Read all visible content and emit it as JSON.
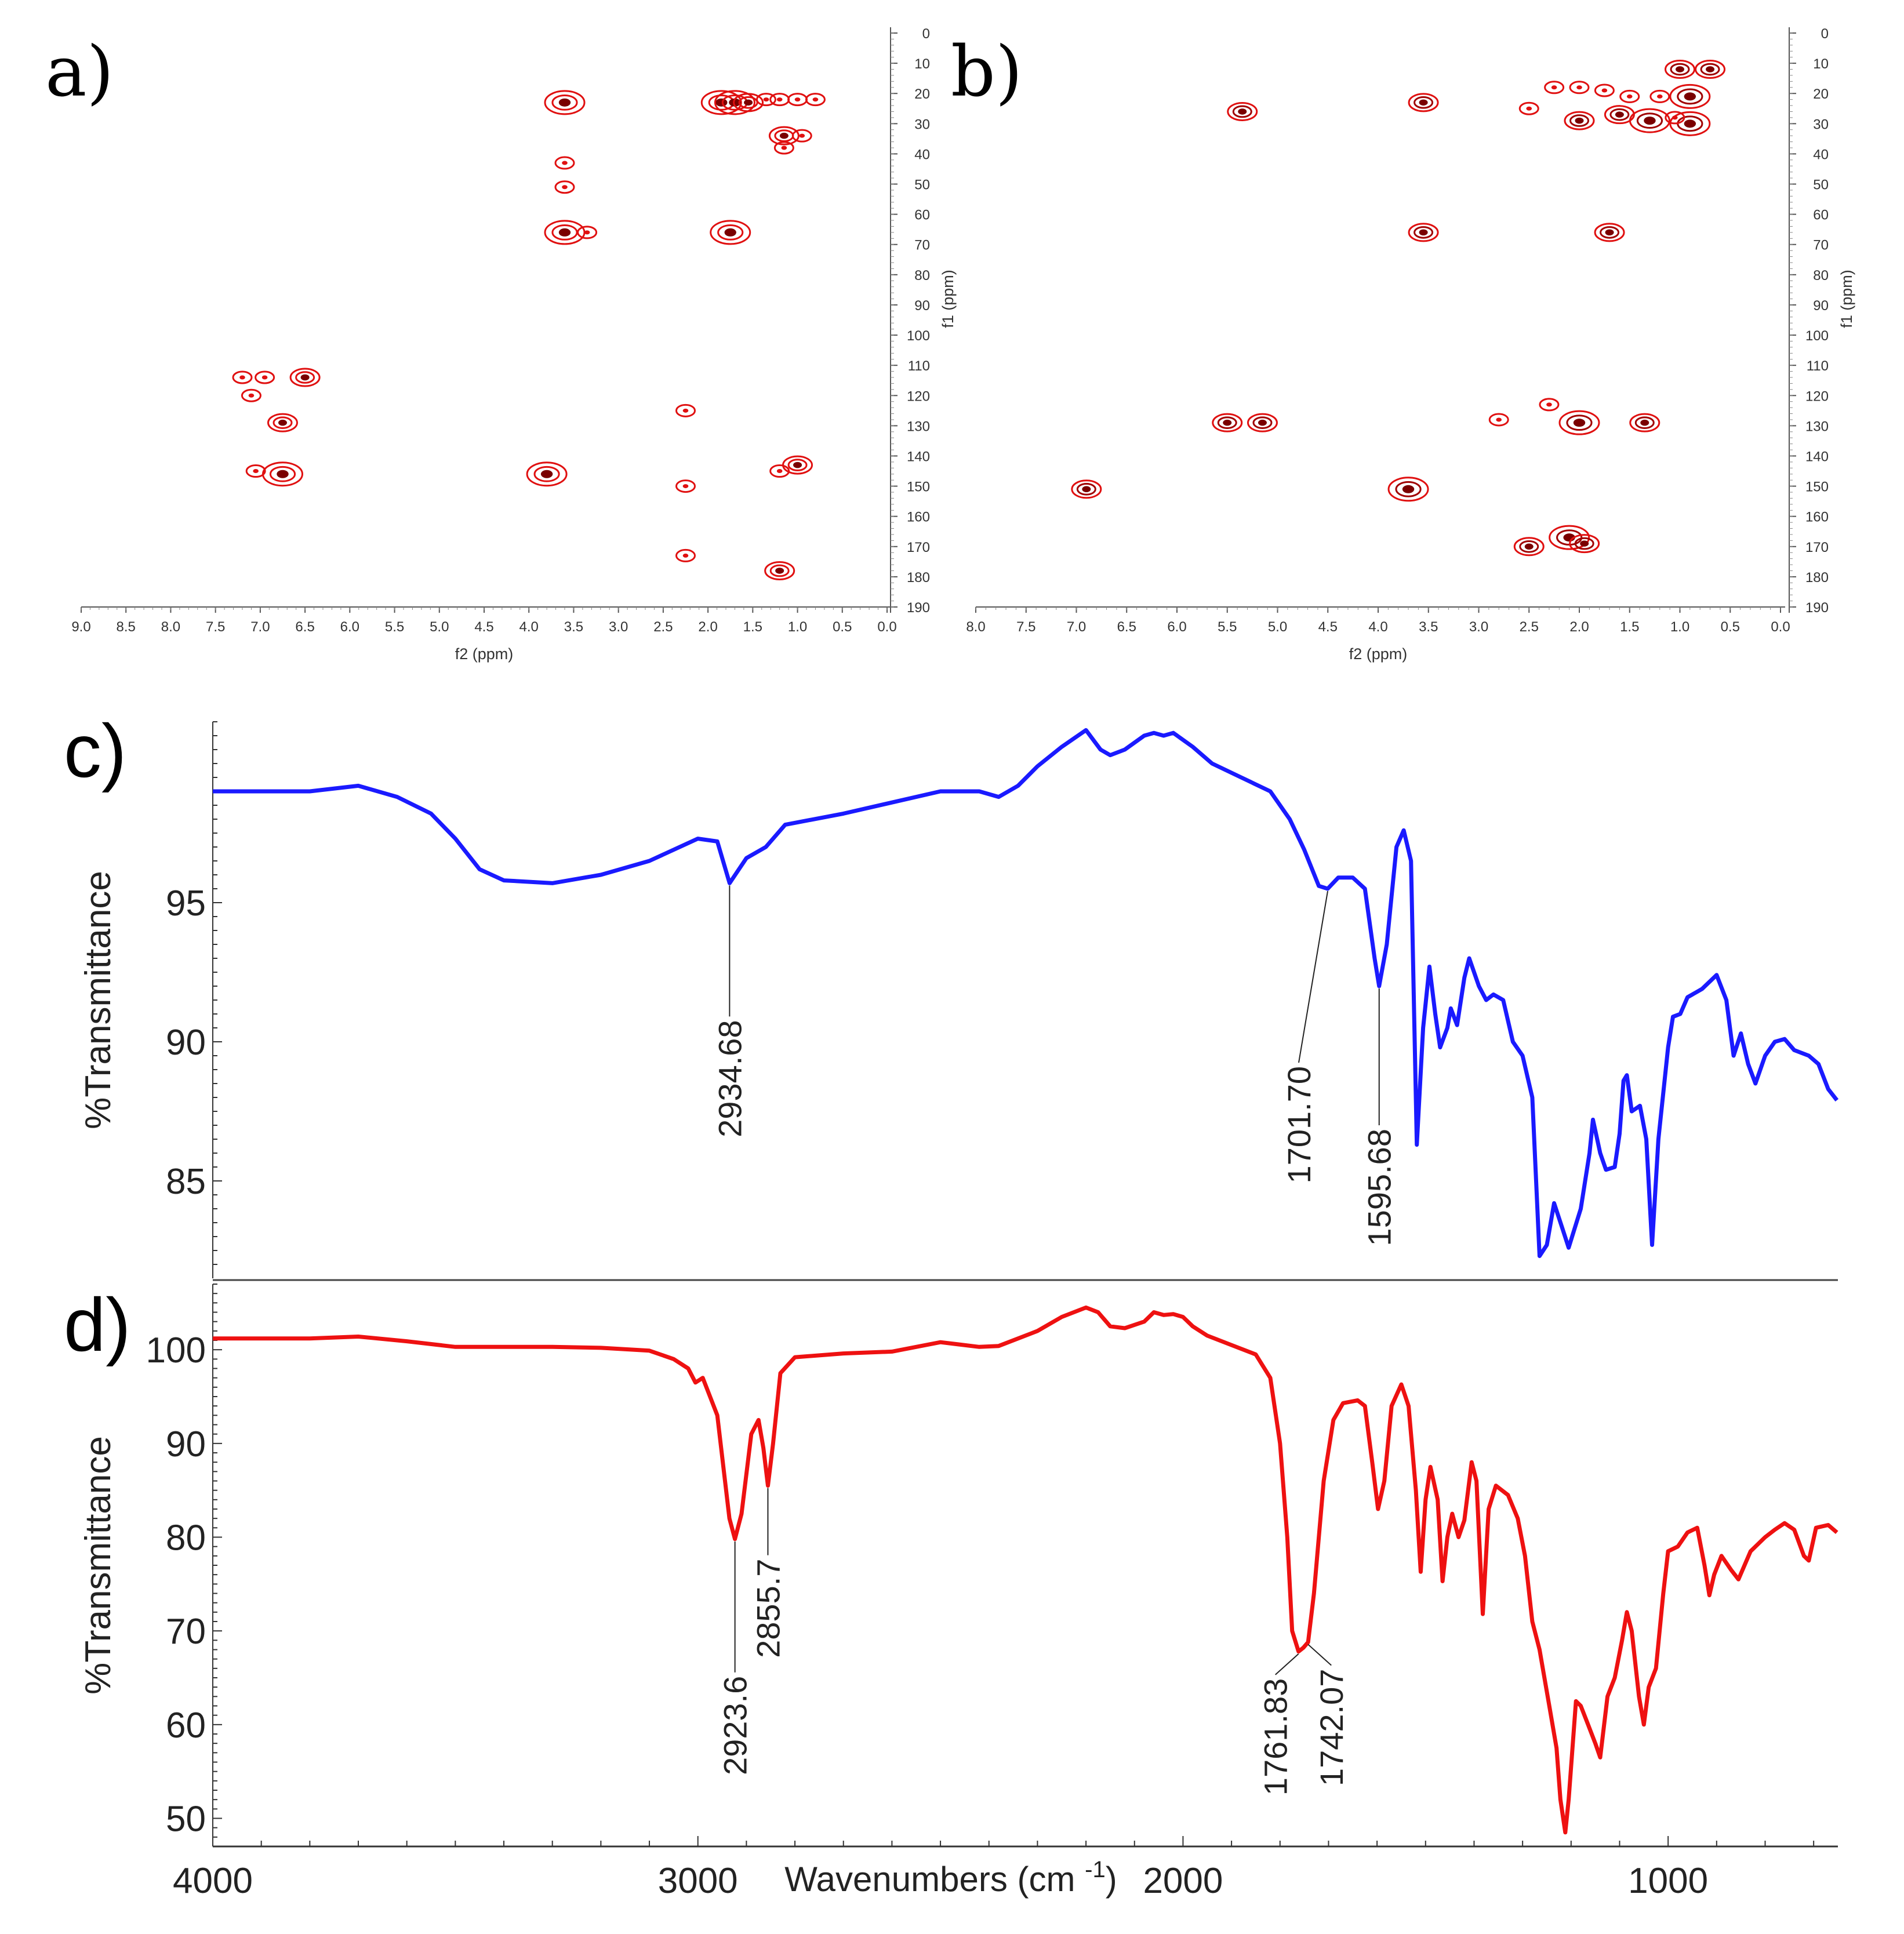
{
  "chart_data": [
    {
      "id": "a",
      "type": "scatter",
      "subtype": "2D NMR HSQC contour map",
      "panel_label": "a)",
      "xlabel": "f2 (ppm)",
      "ylabel": "f1 (ppm)",
      "xlim": [
        9.0,
        0.0
      ],
      "ylim": [
        0,
        190
      ],
      "x_ticks": [
        "9.0",
        "8.5",
        "8.0",
        "7.5",
        "7.0",
        "6.5",
        "6.0",
        "5.5",
        "5.0",
        "4.5",
        "4.0",
        "3.5",
        "3.0",
        "2.5",
        "2.0",
        "1.5",
        "1.0",
        "0.5",
        "0.0"
      ],
      "y_ticks": [
        "0",
        "10",
        "20",
        "30",
        "40",
        "50",
        "60",
        "70",
        "80",
        "90",
        "100",
        "110",
        "120",
        "130",
        "140",
        "150",
        "160",
        "170",
        "180",
        "190"
      ],
      "color": "#e01010",
      "peaks": [
        {
          "x": 3.6,
          "y": 23,
          "s": 3
        },
        {
          "x": 1.85,
          "y": 23,
          "s": 3
        },
        {
          "x": 1.7,
          "y": 23,
          "s": 3
        },
        {
          "x": 1.55,
          "y": 23,
          "s": 2
        },
        {
          "x": 1.35,
          "y": 22,
          "s": 1
        },
        {
          "x": 1.2,
          "y": 22,
          "s": 1
        },
        {
          "x": 1.0,
          "y": 22,
          "s": 1
        },
        {
          "x": 0.8,
          "y": 22,
          "s": 1
        },
        {
          "x": 1.15,
          "y": 34,
          "s": 2
        },
        {
          "x": 0.95,
          "y": 34,
          "s": 1
        },
        {
          "x": 1.15,
          "y": 38,
          "s": 1
        },
        {
          "x": 3.6,
          "y": 66,
          "s": 3
        },
        {
          "x": 3.35,
          "y": 66,
          "s": 1
        },
        {
          "x": 1.75,
          "y": 66,
          "s": 3
        },
        {
          "x": 7.2,
          "y": 114,
          "s": 1
        },
        {
          "x": 6.95,
          "y": 114,
          "s": 1
        },
        {
          "x": 6.5,
          "y": 114,
          "s": 2
        },
        {
          "x": 7.1,
          "y": 120,
          "s": 1
        },
        {
          "x": 6.75,
          "y": 129,
          "s": 2
        },
        {
          "x": 3.8,
          "y": 146,
          "s": 3
        },
        {
          "x": 6.75,
          "y": 146,
          "s": 3
        },
        {
          "x": 7.05,
          "y": 145,
          "s": 1
        },
        {
          "x": 2.25,
          "y": 125,
          "s": 1
        },
        {
          "x": 2.25,
          "y": 150,
          "s": 1
        },
        {
          "x": 1.2,
          "y": 178,
          "s": 2
        },
        {
          "x": 1.0,
          "y": 143,
          "s": 2
        },
        {
          "x": 1.2,
          "y": 145,
          "s": 1
        },
        {
          "x": 2.25,
          "y": 173,
          "s": 1
        },
        {
          "x": 3.6,
          "y": 43,
          "s": 1
        },
        {
          "x": 3.6,
          "y": 51,
          "s": 1
        }
      ]
    },
    {
      "id": "b",
      "type": "scatter",
      "subtype": "2D NMR HSQC contour map",
      "panel_label": "b)",
      "xlabel": "f2 (ppm)",
      "ylabel": "f1 (ppm)",
      "xlim": [
        8.0,
        0.0
      ],
      "ylim": [
        0,
        190
      ],
      "x_ticks": [
        "8.0",
        "7.5",
        "7.0",
        "6.5",
        "6.0",
        "5.5",
        "5.0",
        "4.5",
        "4.0",
        "3.5",
        "3.0",
        "2.5",
        "2.0",
        "1.5",
        "1.0",
        "0.5",
        "0.0"
      ],
      "y_ticks": [
        "0",
        "10",
        "20",
        "30",
        "40",
        "50",
        "60",
        "70",
        "80",
        "90",
        "100",
        "110",
        "120",
        "130",
        "140",
        "150",
        "160",
        "170",
        "180",
        "190"
      ],
      "color": "#a00000",
      "peaks": [
        {
          "x": 1.0,
          "y": 12,
          "s": 2
        },
        {
          "x": 0.7,
          "y": 12,
          "s": 2
        },
        {
          "x": 2.25,
          "y": 18,
          "s": 1
        },
        {
          "x": 2.0,
          "y": 18,
          "s": 1
        },
        {
          "x": 1.75,
          "y": 19,
          "s": 1
        },
        {
          "x": 1.5,
          "y": 21,
          "s": 1
        },
        {
          "x": 1.2,
          "y": 21,
          "s": 1
        },
        {
          "x": 0.9,
          "y": 21,
          "s": 3
        },
        {
          "x": 5.35,
          "y": 26,
          "s": 2
        },
        {
          "x": 3.55,
          "y": 23,
          "s": 2
        },
        {
          "x": 2.5,
          "y": 25,
          "s": 1
        },
        {
          "x": 2.0,
          "y": 29,
          "s": 2
        },
        {
          "x": 1.6,
          "y": 27,
          "s": 2
        },
        {
          "x": 1.3,
          "y": 29,
          "s": 3
        },
        {
          "x": 0.9,
          "y": 30,
          "s": 3
        },
        {
          "x": 1.05,
          "y": 28,
          "s": 1
        },
        {
          "x": 3.55,
          "y": 66,
          "s": 2
        },
        {
          "x": 1.7,
          "y": 66,
          "s": 2
        },
        {
          "x": 5.5,
          "y": 129,
          "s": 2
        },
        {
          "x": 5.15,
          "y": 129,
          "s": 2
        },
        {
          "x": 2.8,
          "y": 128,
          "s": 1
        },
        {
          "x": 2.3,
          "y": 123,
          "s": 1
        },
        {
          "x": 2.0,
          "y": 129,
          "s": 3
        },
        {
          "x": 1.35,
          "y": 129,
          "s": 2
        },
        {
          "x": 6.9,
          "y": 151,
          "s": 2
        },
        {
          "x": 3.7,
          "y": 151,
          "s": 3
        },
        {
          "x": 2.5,
          "y": 170,
          "s": 2
        },
        {
          "x": 2.1,
          "y": 167,
          "s": 3
        },
        {
          "x": 1.95,
          "y": 169,
          "s": 2
        }
      ]
    },
    {
      "id": "c",
      "type": "line",
      "subtype": "FTIR spectrum",
      "panel_label": "c)",
      "xlabel": "",
      "ylabel": "%Transmittance",
      "xlim": [
        4000,
        650
      ],
      "ylim": [
        81.5,
        101.5
      ],
      "y_ticks": [
        85,
        90,
        95
      ],
      "color": "#1a1aff",
      "points": [
        [
          4000,
          99.0
        ],
        [
          3800,
          99.0
        ],
        [
          3700,
          99.2
        ],
        [
          3620,
          98.8
        ],
        [
          3550,
          98.2
        ],
        [
          3500,
          97.3
        ],
        [
          3450,
          96.2
        ],
        [
          3400,
          95.8
        ],
        [
          3300,
          95.7
        ],
        [
          3200,
          96.0
        ],
        [
          3100,
          96.5
        ],
        [
          3000,
          97.3
        ],
        [
          2960,
          97.2
        ],
        [
          2934.68,
          95.7
        ],
        [
          2900,
          96.6
        ],
        [
          2860,
          97.0
        ],
        [
          2820,
          97.8
        ],
        [
          2700,
          98.2
        ],
        [
          2600,
          98.6
        ],
        [
          2500,
          99.0
        ],
        [
          2420,
          99.0
        ],
        [
          2380,
          98.8
        ],
        [
          2340,
          99.2
        ],
        [
          2300,
          99.9
        ],
        [
          2250,
          100.6
        ],
        [
          2200,
          101.2
        ],
        [
          2170,
          100.5
        ],
        [
          2150,
          100.3
        ],
        [
          2120,
          100.5
        ],
        [
          2080,
          101.0
        ],
        [
          2060,
          101.1
        ],
        [
          2040,
          101.0
        ],
        [
          2020,
          101.1
        ],
        [
          1980,
          100.6
        ],
        [
          1940,
          100.0
        ],
        [
          1880,
          99.5
        ],
        [
          1820,
          99.0
        ],
        [
          1780,
          98.0
        ],
        [
          1750,
          96.9
        ],
        [
          1720,
          95.6
        ],
        [
          1701.7,
          95.5
        ],
        [
          1680,
          95.9
        ],
        [
          1650,
          95.9
        ],
        [
          1625,
          95.5
        ],
        [
          1605,
          93.0
        ],
        [
          1595.68,
          92.0
        ],
        [
          1580,
          93.5
        ],
        [
          1560,
          97.0
        ],
        [
          1545,
          97.6
        ],
        [
          1530,
          96.5
        ],
        [
          1518,
          86.3
        ],
        [
          1505,
          90.5
        ],
        [
          1492,
          92.7
        ],
        [
          1480,
          91.0
        ],
        [
          1470,
          89.8
        ],
        [
          1455,
          90.5
        ],
        [
          1448,
          91.2
        ],
        [
          1435,
          90.6
        ],
        [
          1420,
          92.3
        ],
        [
          1410,
          93.0
        ],
        [
          1390,
          92.0
        ],
        [
          1375,
          91.5
        ],
        [
          1360,
          91.7
        ],
        [
          1340,
          91.5
        ],
        [
          1320,
          90.0
        ],
        [
          1300,
          89.5
        ],
        [
          1280,
          88.0
        ],
        [
          1265,
          82.3
        ],
        [
          1250,
          82.7
        ],
        [
          1235,
          84.2
        ],
        [
          1218,
          83.3
        ],
        [
          1205,
          82.6
        ],
        [
          1180,
          84.0
        ],
        [
          1162,
          86.0
        ],
        [
          1155,
          87.2
        ],
        [
          1140,
          86.0
        ],
        [
          1128,
          85.4
        ],
        [
          1110,
          85.5
        ],
        [
          1100,
          86.7
        ],
        [
          1092,
          88.6
        ],
        [
          1085,
          88.8
        ],
        [
          1075,
          87.5
        ],
        [
          1058,
          87.7
        ],
        [
          1045,
          86.5
        ],
        [
          1033,
          82.7
        ],
        [
          1020,
          86.5
        ],
        [
          1000,
          89.8
        ],
        [
          990,
          90.9
        ],
        [
          975,
          91.0
        ],
        [
          960,
          91.6
        ],
        [
          930,
          91.9
        ],
        [
          900,
          92.4
        ],
        [
          880,
          91.5
        ],
        [
          865,
          89.5
        ],
        [
          850,
          90.3
        ],
        [
          835,
          89.2
        ],
        [
          820,
          88.5
        ],
        [
          800,
          89.5
        ],
        [
          780,
          90.0
        ],
        [
          760,
          90.1
        ],
        [
          740,
          89.7
        ],
        [
          710,
          89.5
        ],
        [
          690,
          89.2
        ],
        [
          670,
          88.3
        ],
        [
          652,
          87.9
        ]
      ],
      "annotations": [
        {
          "x": 2934.68,
          "label": "2934.68"
        },
        {
          "x": 1701.7,
          "label": "1701.70"
        },
        {
          "x": 1595.68,
          "label": "1595.68"
        }
      ]
    },
    {
      "id": "d",
      "type": "line",
      "subtype": "FTIR spectrum",
      "panel_label": "d)",
      "xlabel": "Wavenumbers (cm",
      "xlabel_sup": "-1",
      "xlabel_end": ")",
      "ylabel": "%Transmittance",
      "xlim": [
        4000,
        650
      ],
      "ylim": [
        47,
        107
      ],
      "x_ticks": [
        4000,
        3000,
        2000,
        1000
      ],
      "y_ticks": [
        50,
        60,
        70,
        80,
        90,
        100
      ],
      "color": "#ee1111",
      "points": [
        [
          4000,
          101.2
        ],
        [
          3800,
          101.2
        ],
        [
          3700,
          101.4
        ],
        [
          3600,
          100.9
        ],
        [
          3500,
          100.3
        ],
        [
          3300,
          100.3
        ],
        [
          3200,
          100.2
        ],
        [
          3100,
          99.9
        ],
        [
          3050,
          99.0
        ],
        [
          3020,
          98.0
        ],
        [
          3005,
          96.5
        ],
        [
          2990,
          97.0
        ],
        [
          2960,
          93.0
        ],
        [
          2935,
          82.0
        ],
        [
          2923.6,
          79.8
        ],
        [
          2910,
          82.5
        ],
        [
          2890,
          91.0
        ],
        [
          2875,
          92.5
        ],
        [
          2865,
          89.5
        ],
        [
          2855.7,
          85.5
        ],
        [
          2845,
          90.0
        ],
        [
          2830,
          97.5
        ],
        [
          2800,
          99.2
        ],
        [
          2700,
          99.6
        ],
        [
          2600,
          99.8
        ],
        [
          2500,
          100.8
        ],
        [
          2420,
          100.3
        ],
        [
          2380,
          100.4
        ],
        [
          2300,
          102.0
        ],
        [
          2250,
          103.5
        ],
        [
          2200,
          104.5
        ],
        [
          2175,
          104.0
        ],
        [
          2150,
          102.5
        ],
        [
          2120,
          102.3
        ],
        [
          2080,
          103.0
        ],
        [
          2060,
          104.0
        ],
        [
          2040,
          103.7
        ],
        [
          2020,
          103.8
        ],
        [
          2000,
          103.5
        ],
        [
          1980,
          102.5
        ],
        [
          1950,
          101.5
        ],
        [
          1900,
          100.5
        ],
        [
          1850,
          99.5
        ],
        [
          1820,
          97.0
        ],
        [
          1800,
          90.0
        ],
        [
          1785,
          80.0
        ],
        [
          1775,
          70.0
        ],
        [
          1761.83,
          67.8
        ],
        [
          1752,
          68.2
        ],
        [
          1742.07,
          68.8
        ],
        [
          1730,
          74.0
        ],
        [
          1710,
          86.0
        ],
        [
          1690,
          92.5
        ],
        [
          1670,
          94.3
        ],
        [
          1640,
          94.6
        ],
        [
          1625,
          94.0
        ],
        [
          1610,
          88.0
        ],
        [
          1598,
          83.0
        ],
        [
          1585,
          86.0
        ],
        [
          1570,
          94.0
        ],
        [
          1550,
          96.3
        ],
        [
          1535,
          94.0
        ],
        [
          1520,
          85.0
        ],
        [
          1510,
          76.3
        ],
        [
          1500,
          84.0
        ],
        [
          1490,
          87.5
        ],
        [
          1475,
          84.0
        ],
        [
          1465,
          75.3
        ],
        [
          1455,
          80.0
        ],
        [
          1445,
          82.5
        ],
        [
          1432,
          80.0
        ],
        [
          1420,
          81.8
        ],
        [
          1405,
          88.0
        ],
        [
          1395,
          86.0
        ],
        [
          1382,
          71.8
        ],
        [
          1370,
          83.0
        ],
        [
          1355,
          85.5
        ],
        [
          1330,
          84.5
        ],
        [
          1310,
          82.0
        ],
        [
          1295,
          78.0
        ],
        [
          1280,
          71.0
        ],
        [
          1265,
          68.0
        ],
        [
          1245,
          62.0
        ],
        [
          1230,
          57.5
        ],
        [
          1222,
          52.0
        ],
        [
          1212,
          48.5
        ],
        [
          1205,
          52.0
        ],
        [
          1190,
          62.5
        ],
        [
          1180,
          62.0
        ],
        [
          1165,
          60.0
        ],
        [
          1150,
          58.0
        ],
        [
          1140,
          56.5
        ],
        [
          1125,
          63.0
        ],
        [
          1110,
          65.0
        ],
        [
          1095,
          69.0
        ],
        [
          1085,
          72.0
        ],
        [
          1075,
          70.0
        ],
        [
          1060,
          63.0
        ],
        [
          1050,
          60.0
        ],
        [
          1040,
          64.0
        ],
        [
          1025,
          66.0
        ],
        [
          1010,
          74.0
        ],
        [
          1000,
          78.5
        ],
        [
          980,
          79.0
        ],
        [
          960,
          80.5
        ],
        [
          940,
          81.0
        ],
        [
          925,
          77.0
        ],
        [
          915,
          73.8
        ],
        [
          905,
          76.0
        ],
        [
          890,
          78.0
        ],
        [
          870,
          76.5
        ],
        [
          855,
          75.5
        ],
        [
          830,
          78.5
        ],
        [
          800,
          80.0
        ],
        [
          780,
          80.8
        ],
        [
          760,
          81.5
        ],
        [
          740,
          80.8
        ],
        [
          720,
          78.0
        ],
        [
          710,
          77.5
        ],
        [
          695,
          81.0
        ],
        [
          670,
          81.3
        ],
        [
          652,
          80.5
        ]
      ],
      "annotations": [
        {
          "x": 2923.6,
          "label": "2923.6"
        },
        {
          "x": 2855.7,
          "label": "2855.7"
        },
        {
          "x": 1761.83,
          "label": "1761.83"
        },
        {
          "x": 1742.07,
          "label": "1742.07"
        }
      ]
    }
  ]
}
